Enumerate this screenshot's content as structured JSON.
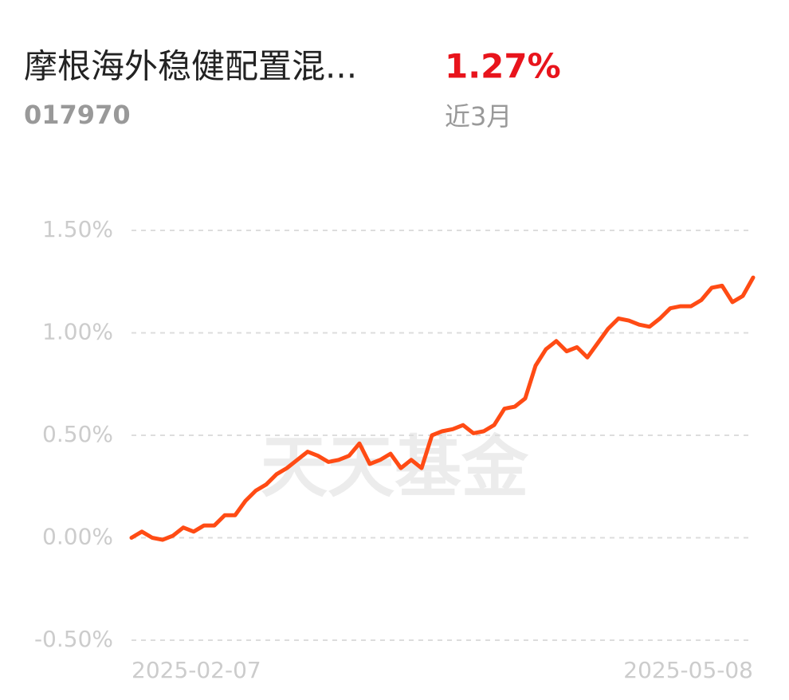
{
  "header": {
    "fund_name": "摩根海外稳健配置混...",
    "fund_code": "017970",
    "return": "1.27%",
    "period": "近3月"
  },
  "chart_data": {
    "type": "line",
    "watermark": "天天基金",
    "categories": [
      "2025-02-07",
      null,
      null,
      null,
      null,
      null,
      null,
      null,
      null,
      null,
      null,
      null,
      null,
      null,
      null,
      null,
      null,
      null,
      null,
      null,
      null,
      null,
      null,
      null,
      null,
      null,
      null,
      null,
      null,
      null,
      null,
      null,
      null,
      null,
      null,
      null,
      null,
      null,
      null,
      null,
      null,
      null,
      null,
      null,
      null,
      null,
      null,
      null,
      null,
      null,
      null,
      null,
      null,
      null,
      null,
      null,
      null,
      null,
      null,
      null,
      "2025-05-08"
    ],
    "series": [
      {
        "color": "#ff4b14",
        "values": [
          0.0,
          0.03,
          0.0,
          -0.01,
          0.01,
          0.05,
          0.03,
          0.06,
          0.06,
          0.11,
          0.11,
          0.18,
          0.23,
          0.26,
          0.31,
          0.34,
          0.38,
          0.42,
          0.4,
          0.37,
          0.38,
          0.4,
          0.46,
          0.36,
          0.38,
          0.41,
          0.34,
          0.38,
          0.34,
          0.5,
          0.52,
          0.53,
          0.55,
          0.51,
          0.52,
          0.55,
          0.63,
          0.64,
          0.68,
          0.84,
          0.92,
          0.96,
          0.91,
          0.93,
          0.88,
          0.95,
          1.02,
          1.07,
          1.06,
          1.04,
          1.03,
          1.07,
          1.12,
          1.13,
          1.13,
          1.16,
          1.22,
          1.23,
          1.15,
          1.18,
          1.27
        ]
      }
    ],
    "ylim": [
      -0.5,
      1.5
    ],
    "yticks": [
      {
        "value": 1.5,
        "label": "1.50%"
      },
      {
        "value": 1.0,
        "label": "1.00%"
      },
      {
        "value": 0.5,
        "label": "0.50%"
      },
      {
        "value": 0,
        "label": "0.00%"
      },
      {
        "value": -0.5,
        "label": "-0.50%"
      }
    ],
    "grid": true
  }
}
